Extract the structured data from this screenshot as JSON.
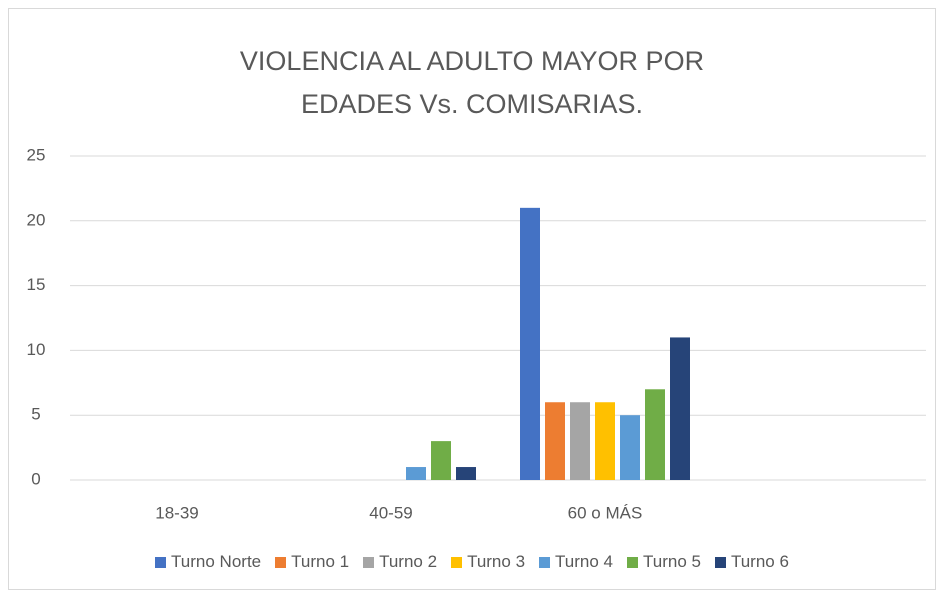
{
  "chart_data": {
    "type": "bar",
    "title": "VIOLENCIA AL ADULTO MAYOR POR EDADES Vs. COMISARIAS.",
    "categories": [
      "18-39",
      "40-59",
      "60 o MÁS",
      null
    ],
    "series": [
      {
        "name": "Turno Norte",
        "color": "#4472c4",
        "values": [
          0,
          0,
          21,
          null
        ]
      },
      {
        "name": "Turno 1",
        "color": "#ed7d31",
        "values": [
          0,
          0,
          6,
          null
        ]
      },
      {
        "name": "Turno 2",
        "color": "#a5a5a5",
        "values": [
          0,
          0,
          6,
          null
        ]
      },
      {
        "name": "Turno 3",
        "color": "#ffc000",
        "values": [
          0,
          0,
          6,
          null
        ]
      },
      {
        "name": "Turno 4",
        "color": "#5b9bd5",
        "values": [
          0,
          1,
          5,
          null
        ]
      },
      {
        "name": "Turno 5",
        "color": "#70ad47",
        "values": [
          0,
          3,
          7,
          null
        ]
      },
      {
        "name": "Turno 6",
        "color": "#264478",
        "values": [
          0,
          1,
          11,
          null
        ]
      }
    ],
    "ylim": [
      0,
      25
    ],
    "yticks": [
      0,
      5,
      10,
      15,
      20,
      25
    ],
    "grid": true,
    "legend": "bottom"
  }
}
